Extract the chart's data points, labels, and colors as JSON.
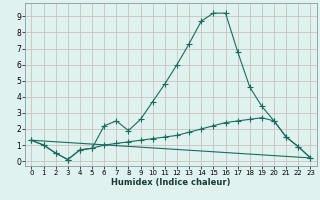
{
  "xlabel": "Humidex (Indice chaleur)",
  "background_color": "#dff2f0",
  "grid_color": "#c8b8b8",
  "line_color": "#1a6b5a",
  "xlim": [
    -0.5,
    23.5
  ],
  "ylim": [
    -0.3,
    9.8
  ],
  "xticks": [
    0,
    1,
    2,
    3,
    4,
    5,
    6,
    7,
    8,
    9,
    10,
    11,
    12,
    13,
    14,
    15,
    16,
    17,
    18,
    19,
    20,
    21,
    22,
    23
  ],
  "yticks": [
    0,
    1,
    2,
    3,
    4,
    5,
    6,
    7,
    8,
    9
  ],
  "line1_x": [
    0,
    1,
    2,
    3,
    4,
    5,
    6,
    7,
    8,
    9,
    10,
    11,
    12,
    13,
    14,
    15,
    16,
    17,
    18,
    19,
    20,
    21,
    22,
    23
  ],
  "line1_y": [
    1.3,
    1.0,
    0.5,
    0.1,
    0.7,
    0.8,
    2.2,
    2.5,
    1.9,
    2.6,
    3.7,
    4.8,
    6.0,
    7.3,
    8.7,
    9.2,
    9.2,
    6.8,
    4.6,
    3.4,
    2.5,
    1.5,
    0.9,
    0.2
  ],
  "line2_x": [
    0,
    1,
    2,
    3,
    4,
    5,
    6,
    7,
    8,
    9,
    10,
    11,
    12,
    13,
    14,
    15,
    16,
    17,
    18,
    19,
    20,
    21,
    22,
    23
  ],
  "line2_y": [
    1.3,
    1.0,
    0.5,
    0.1,
    0.7,
    0.8,
    1.0,
    1.1,
    1.2,
    1.3,
    1.4,
    1.5,
    1.6,
    1.8,
    2.0,
    2.2,
    2.4,
    2.5,
    2.6,
    2.7,
    2.5,
    1.5,
    0.9,
    0.2
  ],
  "line3_x": [
    0,
    23
  ],
  "line3_y": [
    1.3,
    0.2
  ],
  "marker": "+",
  "marker_size": 4.0,
  "linewidth": 0.8
}
